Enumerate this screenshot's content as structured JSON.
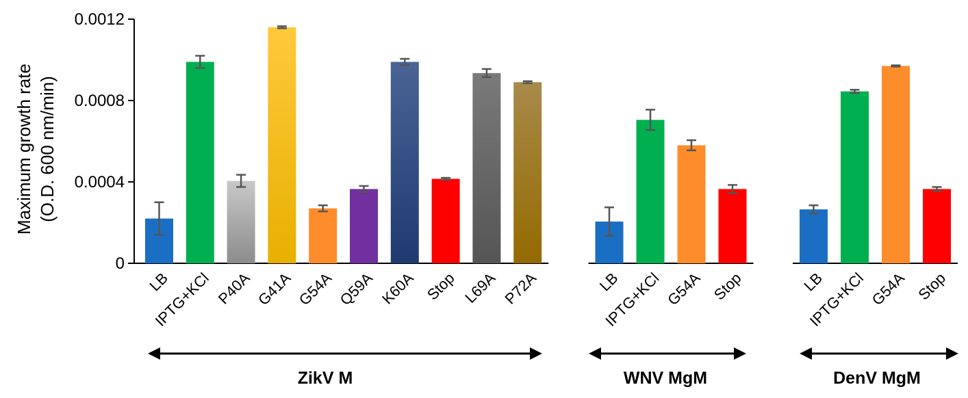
{
  "chart_data": {
    "type": "bar",
    "title": "",
    "ylabel": "Maximum growth rate",
    "ylabel_units": "(O.D. 600 nm/min)",
    "xlabel": "",
    "ylim": [
      0,
      0.0012
    ],
    "yticks": [
      {
        "value": 0,
        "label": "0"
      },
      {
        "value": 0.0004,
        "label": "0.0004"
      },
      {
        "value": 0.0008,
        "label": "0.0008"
      },
      {
        "value": 0.0012,
        "label": "0.0012"
      }
    ],
    "grid": false,
    "groups": [
      {
        "name": "ZikV M",
        "bars": [
          {
            "label": "LB",
            "value": 0.00022,
            "error": 8e-05,
            "color": "#1a6fc4",
            "color_top": "#1a6fc4"
          },
          {
            "label": "IPTG+KCl",
            "value": 0.00099,
            "error": 3e-05,
            "color": "#00b050",
            "color_top": "#00b050"
          },
          {
            "label": "P40A",
            "value": 0.000405,
            "error": 3e-05,
            "color": "#8c8c8c",
            "color_top": "#c8c8c8"
          },
          {
            "label": "G41A",
            "value": 0.00116,
            "error": 5e-06,
            "color": "#e8b000",
            "color_top": "#ffc93c"
          },
          {
            "label": "G54A",
            "value": 0.00027,
            "error": 1.5e-05,
            "color": "#ff8c2a",
            "color_top": "#ff8c2a"
          },
          {
            "label": "Q59A",
            "value": 0.000365,
            "error": 1.5e-05,
            "color": "#7030a0",
            "color_top": "#7030a0"
          },
          {
            "label": "K60A",
            "value": 0.00099,
            "error": 1.5e-05,
            "color": "#1f3a70",
            "color_top": "#4a6496"
          },
          {
            "label": "Stop",
            "value": 0.000415,
            "error": 5e-06,
            "color": "#ff0000",
            "color_top": "#ff0000"
          },
          {
            "label": "L69A",
            "value": 0.000935,
            "error": 2e-05,
            "color": "#555555",
            "color_top": "#7a7a7a"
          },
          {
            "label": "P72A",
            "value": 0.00089,
            "error": 5e-06,
            "color": "#946a00",
            "color_top": "#a88a4a"
          }
        ]
      },
      {
        "name": "WNV MgM",
        "bars": [
          {
            "label": "LB",
            "value": 0.000205,
            "error": 7e-05,
            "color": "#1a6fc4",
            "color_top": "#1a6fc4"
          },
          {
            "label": "IPTG+KCl",
            "value": 0.000705,
            "error": 5e-05,
            "color": "#00b050",
            "color_top": "#00b050"
          },
          {
            "label": "G54A",
            "value": 0.00058,
            "error": 2.5e-05,
            "color": "#ff8c2a",
            "color_top": "#ff8c2a"
          },
          {
            "label": "Stop",
            "value": 0.000365,
            "error": 2e-05,
            "color": "#ff0000",
            "color_top": "#ff0000"
          }
        ]
      },
      {
        "name": "DenV MgM",
        "bars": [
          {
            "label": "LB",
            "value": 0.000265,
            "error": 2e-05,
            "color": "#1a6fc4",
            "color_top": "#1a6fc4"
          },
          {
            "label": "IPTG+KCl",
            "value": 0.000845,
            "error": 8e-06,
            "color": "#00b050",
            "color_top": "#00b050"
          },
          {
            "label": "G54A",
            "value": 0.00097,
            "error": 3e-06,
            "color": "#ff8c2a",
            "color_top": "#ff8c2a"
          },
          {
            "label": "Stop",
            "value": 0.000365,
            "error": 1e-05,
            "color": "#ff0000",
            "color_top": "#ff0000"
          }
        ]
      }
    ],
    "error_bar_color": "#555555"
  }
}
